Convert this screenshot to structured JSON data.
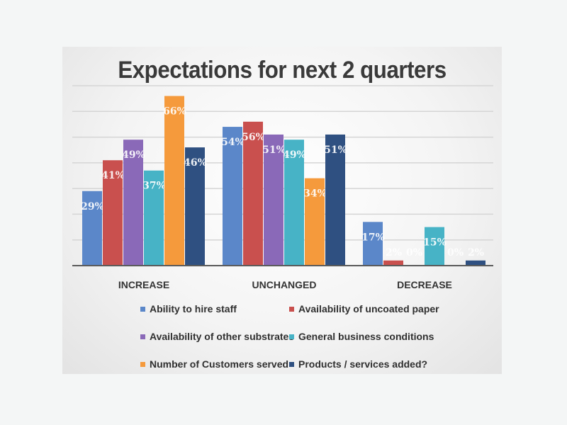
{
  "chart_data": {
    "type": "bar",
    "title": "Expectations for next 2 quarters",
    "xlabel": "",
    "ylabel": "",
    "ylim": [
      0,
      70
    ],
    "grid": true,
    "legend_position": "bottom",
    "categories": [
      "INCREASE",
      "UNCHANGED",
      "DECREASE"
    ],
    "series": [
      {
        "name": "Ability to hire staff",
        "color": "#5b87c9",
        "values": [
          29,
          54,
          17
        ],
        "labels": [
          "29%",
          "54%",
          "17%"
        ]
      },
      {
        "name": "Availability of uncoated paper",
        "color": "#c9504e",
        "values": [
          41,
          56,
          2
        ],
        "labels": [
          "41%",
          "56%",
          "2%"
        ]
      },
      {
        "name": "Availability of other substrates",
        "color": "#8a69b8",
        "values": [
          49,
          51,
          0
        ],
        "labels": [
          "49%",
          "51%",
          "0%"
        ]
      },
      {
        "name": "General business conditions",
        "color": "#47b3c6",
        "values": [
          37,
          49,
          15
        ],
        "labels": [
          "37%",
          "49%",
          "15%"
        ]
      },
      {
        "name": "Number of Customers served",
        "color": "#f59a3c",
        "values": [
          66,
          34,
          0
        ],
        "labels": [
          "66%",
          "34%",
          "0%"
        ]
      },
      {
        "name": "Products / services added?",
        "color": "#2f5081",
        "values": [
          46,
          51,
          2
        ],
        "labels": [
          "46%",
          "51%",
          "2%"
        ]
      }
    ]
  }
}
